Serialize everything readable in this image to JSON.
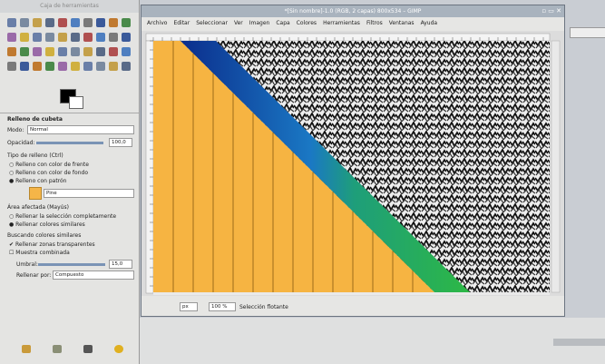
{
  "toolbox": {
    "title": "Caja de herramientas",
    "tool_options": {
      "title": "Relleno de cubeta",
      "mode_label": "Modo:",
      "mode": "Normal",
      "opacity_label": "Opacidad:",
      "opacity": "100,0",
      "fill_type_label": "Tipo de relleno (Ctrl)",
      "fill_types": [
        "Relleno con color de frente",
        "Relleno con color de fondo",
        "Relleno con patrón"
      ],
      "pattern": "Pine",
      "area_label": "Área afectada (Mayús)",
      "areas": [
        "Rellenar la selección completamente",
        "Rellenar colores similares"
      ],
      "similar_label": "Buscando colores similares",
      "similar_options": [
        "Rellenar zonas transparentes",
        "Muestra combinada"
      ],
      "threshold_label": "Umbral:",
      "threshold": "15,0",
      "fill_by_label": "Rellenar por:",
      "fill_by": "Compuesto"
    }
  },
  "window": {
    "title": "*[Sin nombre]-1.0 (RGB, 2 capas) 800x534 – GIMP",
    "menu": [
      "Archivo",
      "Editar",
      "Seleccionar",
      "Ver",
      "Imagen",
      "Capa",
      "Colores",
      "Herramientas",
      "Filtros",
      "Ventanas",
      "Ayuda"
    ],
    "status": {
      "unit": "px",
      "zoom": "100 %",
      "message": "Selección flotante"
    }
  }
}
